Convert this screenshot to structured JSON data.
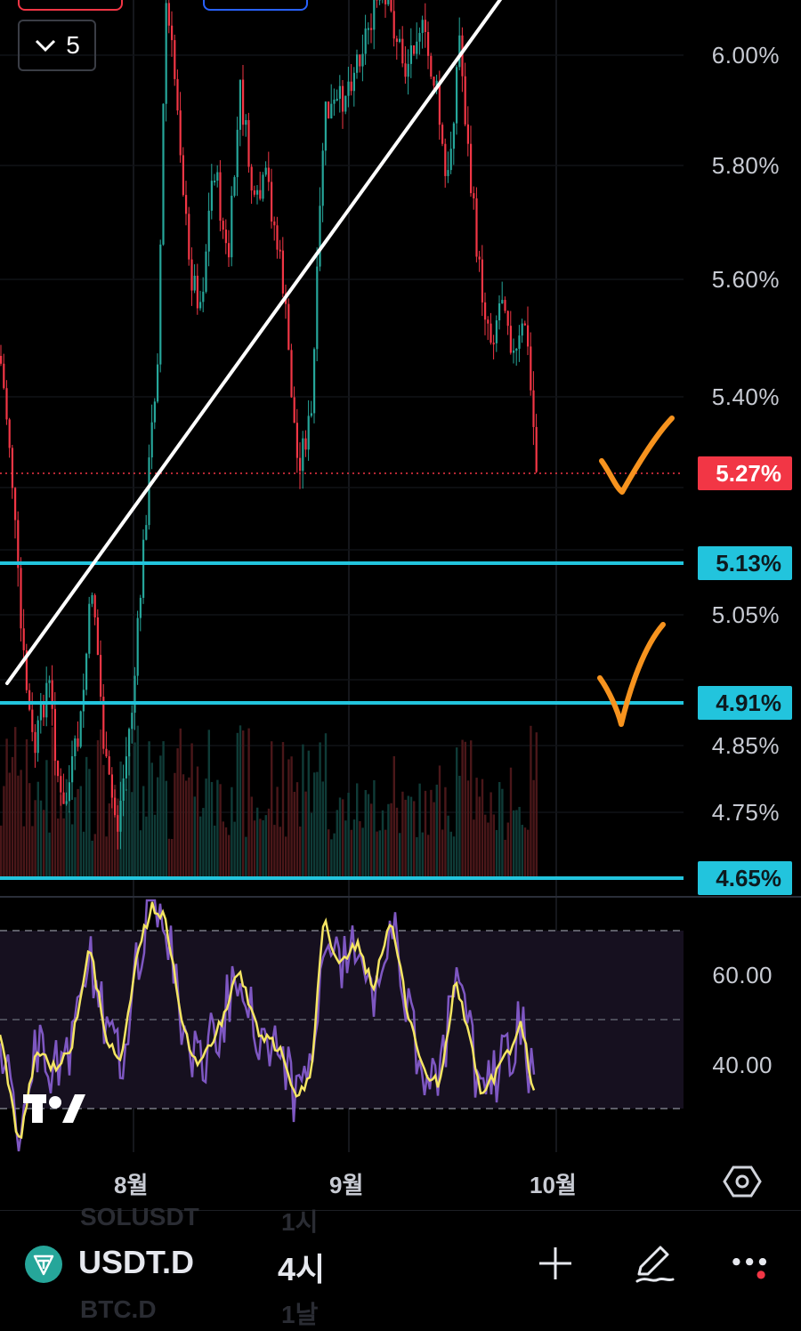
{
  "toolbar": {
    "collapse_count": "5"
  },
  "price_axis": {
    "labels": [
      "6.00%",
      "5.80%",
      "5.60%",
      "5.40%",
      "5.05%",
      "4.85%",
      "4.75%",
      "60.00",
      "40.00"
    ]
  },
  "price_tags": {
    "current": "5.27%",
    "level_1": "5.13%",
    "level_2": "4.91%",
    "level_3": "4.65%"
  },
  "time_axis": {
    "months": [
      "8월",
      "9월",
      "10월"
    ]
  },
  "bottom_bar": {
    "symbol": "USDT.D",
    "interval": "4시",
    "ghost_above_symbol": "SOLUSDT",
    "ghost_above_interval": "1시",
    "ghost_below_symbol": "BTC.D",
    "ghost_below_interval": "1날"
  },
  "colors": {
    "up": "#26a69a",
    "down": "#f23645",
    "horizontal_line": "#22c4dd",
    "trendline": "#ffffff",
    "annotation": "#f7931e",
    "rsi": "#7e57c2",
    "rsi_ma": "#f5e663"
  },
  "icons": [
    "chevron-down-icon",
    "settings-hexagon-icon",
    "tradingview-logo-icon",
    "tether-icon",
    "plus-icon",
    "pencil-icon",
    "more-icon"
  ]
}
